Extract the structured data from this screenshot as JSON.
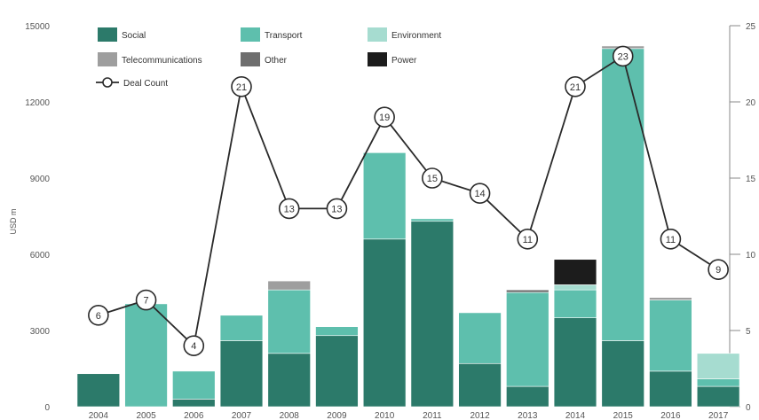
{
  "chart_data": {
    "type": "bar",
    "stacked": true,
    "categories": [
      "2004",
      "2005",
      "2006",
      "2007",
      "2008",
      "2009",
      "2010",
      "2011",
      "2012",
      "2013",
      "2014",
      "2015",
      "2016",
      "2017"
    ],
    "ylabel": "USD m",
    "ylim": [
      0,
      15000
    ],
    "y_ticks": [
      "0",
      "3000",
      "6000",
      "9000",
      "12000",
      "15000"
    ],
    "y2lim": [
      0,
      25
    ],
    "y2_ticks": [
      "0",
      "5",
      "10",
      "15",
      "20",
      "25"
    ],
    "grid": false,
    "legend_position": "top-left",
    "series": [
      {
        "name": "Social",
        "color": "#2c7a6a",
        "values": [
          1300,
          0,
          300,
          2600,
          2100,
          2800,
          6600,
          7300,
          1700,
          800,
          3500,
          2600,
          1400,
          800
        ]
      },
      {
        "name": "Transport",
        "color": "#5ebfad",
        "values": [
          0,
          4050,
          1100,
          1000,
          2500,
          350,
          3400,
          100,
          2000,
          3700,
          1100,
          11500,
          2800,
          300
        ]
      },
      {
        "name": "Environment",
        "color": "#a6dcd0",
        "values": [
          0,
          0,
          0,
          0,
          0,
          0,
          0,
          0,
          0,
          0,
          200,
          0,
          0,
          1000
        ]
      },
      {
        "name": "Telecommunications",
        "color": "#9e9e9e",
        "values": [
          0,
          0,
          0,
          0,
          350,
          0,
          0,
          0,
          0,
          0,
          0,
          100,
          100,
          0
        ]
      },
      {
        "name": "Other",
        "color": "#6e6e6e",
        "values": [
          0,
          0,
          0,
          0,
          0,
          0,
          0,
          0,
          0,
          100,
          0,
          0,
          0,
          0
        ]
      },
      {
        "name": "Power",
        "color": "#1c1c1c",
        "values": [
          0,
          0,
          0,
          0,
          0,
          0,
          0,
          0,
          0,
          0,
          1000,
          0,
          0,
          0
        ]
      }
    ],
    "line_series": {
      "name": "Deal Count",
      "axis": "right",
      "values": [
        6,
        7,
        4,
        21,
        13,
        13,
        19,
        15,
        14,
        11,
        21,
        23,
        11,
        9
      ]
    }
  }
}
